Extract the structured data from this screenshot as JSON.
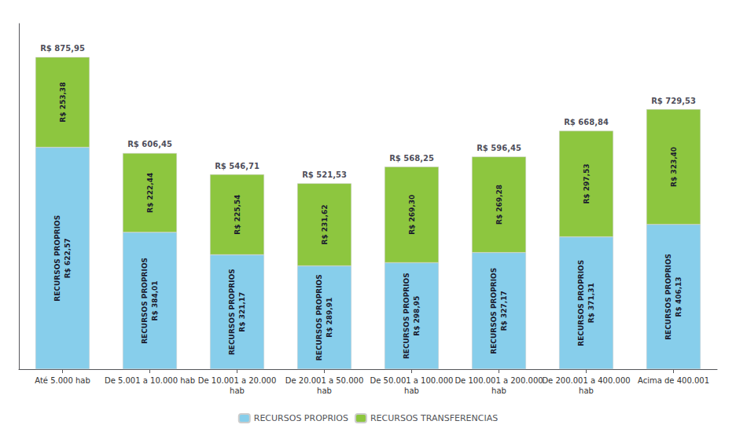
{
  "chart_data": {
    "type": "bar",
    "stacked": true,
    "categories": [
      "Até 5.000 hab",
      "De 5.001 a 10.000 hab",
      "De 10.001 a 20.000\nhab",
      "De 20.001 a 50.000\nhab",
      "De 50.001 a 100.000\nhab",
      "De 100.001 a 200.000\nhab",
      "De 200.001 a 400.000\nhab",
      "Acima de 400.001"
    ],
    "series": [
      {
        "name": "RECURSOS PROPRIOS",
        "color": "#87CEEB",
        "values": [
          622.57,
          384.01,
          321.17,
          289.91,
          298.95,
          327.17,
          371.31,
          406.13
        ],
        "value_labels": [
          "RECURSOS PROPRIOS\nR$ 622,57",
          "RECURSOS PROPRIOS\nR$ 384,01",
          "RECURSOS PROPRIOS\nR$ 321,17",
          "RECURSOS PROPRIOS\nR$ 289,91",
          "RECURSOS PROPRIOS\nR$ 298,95",
          "RECURSOS PROPRIOS\nR$ 327,17",
          "RECURSOS PROPRIOS\nR$ 371,31",
          "RECURSOS PROPRIOS\nR$ 406,13"
        ]
      },
      {
        "name": "RECURSOS TRANSFERENCIAS",
        "color": "#8DC63F",
        "values": [
          253.38,
          222.44,
          225.54,
          231.62,
          269.3,
          269.28,
          297.53,
          323.4
        ],
        "value_labels": [
          "R$ 253,38",
          "R$ 222,44",
          "R$ 225,54",
          "R$ 231,62",
          "R$ 269,30",
          "R$ 269,28",
          "R$ 297,53",
          "R$ 323,40"
        ]
      }
    ],
    "totals": {
      "values": [
        875.95,
        606.45,
        546.71,
        521.53,
        568.25,
        596.45,
        668.84,
        729.53
      ],
      "value_labels": [
        "R$ 875,95",
        "R$ 606,45",
        "R$ 546,71",
        "R$ 521,53",
        "R$ 568,25",
        "R$ 596,45",
        "R$ 668,84",
        "R$ 729,53"
      ]
    },
    "ylim": [
      0,
      970
    ],
    "tick_labels": "x",
    "grid": false,
    "legend": "bottom",
    "data_labels": true
  }
}
